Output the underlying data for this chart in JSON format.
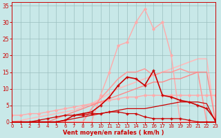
{
  "bg_color": "#c8e8e8",
  "grid_color": "#9bbfbf",
  "xlabel": "Vent moyen/en rafales ( km/h )",
  "xlabel_color": "#cc0000",
  "tick_color": "#cc0000",
  "xlim": [
    0,
    23
  ],
  "ylim": [
    0,
    36
  ],
  "yticks": [
    0,
    5,
    10,
    15,
    20,
    25,
    30,
    35
  ],
  "xticks": [
    0,
    1,
    2,
    3,
    4,
    5,
    6,
    7,
    8,
    9,
    10,
    11,
    12,
    13,
    14,
    15,
    16,
    17,
    18,
    19,
    20,
    21,
    22,
    23
  ],
  "series": [
    {
      "y": [
        2,
        2,
        2.5,
        2.5,
        3,
        3.5,
        4,
        4.5,
        5,
        5.5,
        6,
        6.5,
        7,
        7.5,
        7.5,
        8,
        8,
        8,
        8,
        8,
        8,
        8,
        8,
        8
      ],
      "color": "#ffaaaa",
      "lw": 1.0,
      "marker": "D",
      "ms": 1.8,
      "zorder": 2
    },
    {
      "y": [
        0,
        0.5,
        1,
        1.5,
        2,
        2.5,
        3,
        3.5,
        4.5,
        5.5,
        7,
        8.5,
        10,
        11,
        12,
        13,
        14,
        15,
        16,
        17,
        18,
        19,
        19,
        0
      ],
      "color": "#ffbbbb",
      "lw": 1.2,
      "marker": null,
      "ms": 0,
      "zorder": 1
    },
    {
      "y": [
        0,
        0,
        0,
        0,
        0,
        0,
        0,
        0,
        0,
        0,
        8,
        15,
        23,
        24,
        30,
        34,
        28,
        30,
        20,
        0,
        0,
        0,
        0,
        0
      ],
      "color": "#ffaaaa",
      "lw": 1.0,
      "marker": "D",
      "ms": 1.8,
      "zorder": 2
    },
    {
      "y": [
        0,
        0,
        0,
        0,
        0,
        0,
        0,
        0,
        0,
        4,
        7,
        10,
        13,
        15,
        15,
        16,
        14,
        15,
        15,
        16,
        15,
        15,
        0,
        0
      ],
      "color": "#ff9999",
      "lw": 1.1,
      "marker": null,
      "ms": 0,
      "zorder": 3
    },
    {
      "y": [
        0,
        0,
        0,
        0,
        0,
        0,
        0.5,
        2,
        2.5,
        3,
        5,
        7.5,
        11,
        13.5,
        13,
        11,
        15.5,
        8,
        7.5,
        6.5,
        6,
        5,
        4,
        0.5
      ],
      "color": "#cc0000",
      "lw": 1.2,
      "marker": "+",
      "ms": 3.5,
      "zorder": 6
    },
    {
      "y": [
        0,
        0,
        0,
        0,
        0,
        0,
        0.5,
        1,
        1.5,
        2,
        2.5,
        3,
        3.5,
        4,
        4,
        4,
        4.5,
        5,
        5.5,
        6,
        6,
        6,
        5.5,
        0
      ],
      "color": "#cc0000",
      "lw": 0.9,
      "marker": null,
      "ms": 0,
      "zorder": 4
    },
    {
      "y": [
        0,
        0,
        0,
        0.5,
        1,
        1.5,
        2,
        2,
        2,
        2.5,
        2.5,
        3,
        3,
        2.5,
        2.5,
        1.5,
        1,
        1,
        1,
        1,
        0.5,
        0,
        0,
        0
      ],
      "color": "#cc0000",
      "lw": 0.9,
      "marker": "+",
      "ms": 2.5,
      "zorder": 5
    },
    {
      "y": [
        0,
        0,
        0,
        0,
        0,
        1,
        2,
        3,
        4,
        5,
        6,
        7,
        8,
        9,
        10,
        11,
        12,
        12,
        13,
        13,
        14,
        15,
        15,
        0
      ],
      "color": "#ff8888",
      "lw": 1.0,
      "marker": null,
      "ms": 0,
      "zorder": 3
    }
  ]
}
